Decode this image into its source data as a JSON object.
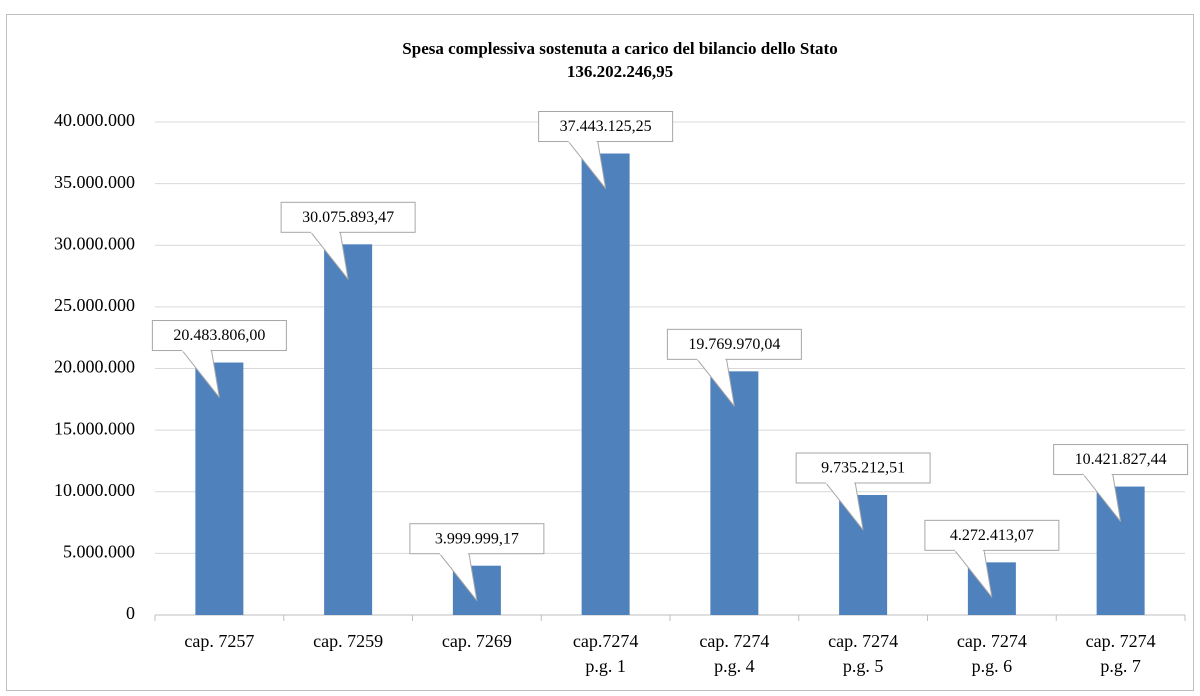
{
  "chart_data": {
    "type": "bar",
    "title": "Spesa complessiva sostenuta a carico del bilancio dello Stato",
    "subtitle": "136.202.246,95",
    "categories": [
      "cap. 7257",
      "cap. 7259",
      "cap. 7269",
      "cap.7274\np.g. 1",
      "cap. 7274\np.g. 4",
      "cap. 7274\np.g. 5",
      "cap. 7274\np.g. 6",
      "cap. 7274\np.g. 7"
    ],
    "values": [
      20483806.0,
      30075893.47,
      3999999.17,
      37443125.25,
      19769970.04,
      9735212.51,
      4272413.07,
      10421827.44
    ],
    "value_labels": [
      "20.483.806,00",
      "30.075.893,47",
      "3.999.999,17",
      "37.443.125,25",
      "19.769.970,04",
      "9.735.212,51",
      "4.272.413,07",
      "10.421.827,44"
    ],
    "color": "#4f81bd",
    "ylim": [
      0,
      40000000
    ],
    "yticks": [
      0,
      {
        "value": 5000000,
        "label": "5.000.000"
      },
      {
        "value": 10000000,
        "label": "10.000.000"
      },
      {
        "value": 15000000,
        "label": "15.000.000"
      },
      {
        "value": 20000000,
        "label": "20.000.000"
      },
      {
        "value": 25000000,
        "label": "25.000.000"
      },
      {
        "value": 30000000,
        "label": "30.000.000"
      },
      {
        "value": 35000000,
        "label": "35.000.000"
      },
      {
        "value": 40000000,
        "label": "40.000.000"
      }
    ],
    "grid": true
  }
}
